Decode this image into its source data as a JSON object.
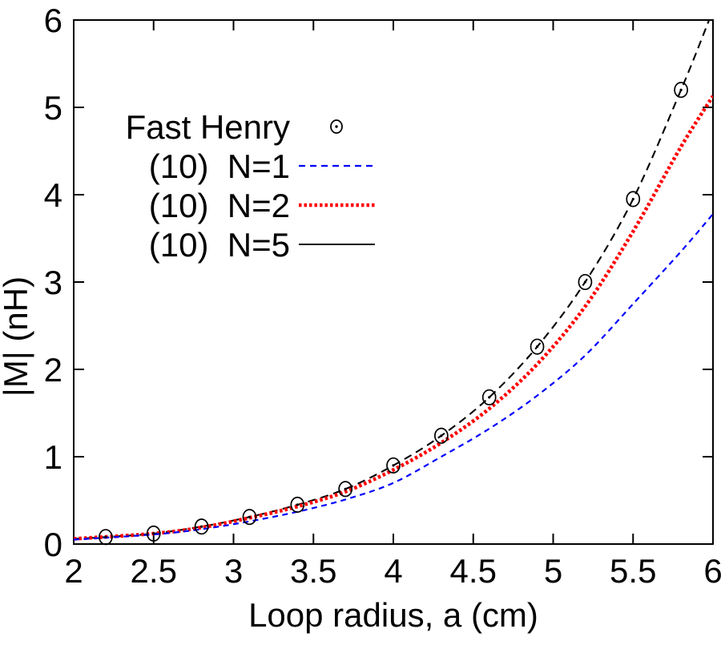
{
  "chart_data": {
    "type": "line",
    "title": "",
    "xlabel": "Loop radius, a (cm)",
    "ylabel": "|M| (nH)",
    "xlim": [
      2,
      6
    ],
    "ylim": [
      0,
      6
    ],
    "grid": false,
    "legend_position": "inside-upper-left",
    "xticks": {
      "values": [
        2,
        2.5,
        3,
        3.5,
        4,
        4.5,
        5,
        5.5,
        6
      ],
      "labels": [
        "2",
        "2.5",
        "3",
        "3.5",
        "4",
        "4.5",
        "5",
        "5.5",
        "6"
      ]
    },
    "yticks": {
      "values": [
        0,
        1,
        2,
        3,
        4,
        5,
        6
      ],
      "labels": [
        "0",
        "1",
        "2",
        "3",
        "4",
        "5",
        "6"
      ]
    },
    "series": [
      {
        "name": "Fast Henry",
        "kind": "scatter",
        "marker": "open-circle-with-center-dot",
        "color": "#000000",
        "x": [
          2.2,
          2.5,
          2.8,
          3.1,
          3.4,
          3.7,
          4.0,
          4.3,
          4.6,
          4.9,
          5.2,
          5.5,
          5.8
        ],
        "y": [
          0.08,
          0.12,
          0.2,
          0.31,
          0.45,
          0.63,
          0.9,
          1.24,
          1.68,
          2.26,
          3.0,
          3.95,
          5.2
        ]
      },
      {
        "name": "(10)  N=1",
        "kind": "line",
        "line_style": "dashed",
        "color": "#0000ff",
        "points": [
          [
            2.0,
            0.05
          ],
          [
            2.5,
            0.11
          ],
          [
            2.8,
            0.17
          ],
          [
            3.1,
            0.26
          ],
          [
            3.4,
            0.37
          ],
          [
            3.7,
            0.51
          ],
          [
            4.0,
            0.7
          ],
          [
            4.3,
            1.0
          ],
          [
            4.6,
            1.32
          ],
          [
            4.9,
            1.7
          ],
          [
            5.2,
            2.16
          ],
          [
            5.5,
            2.75
          ],
          [
            5.8,
            3.35
          ],
          [
            6.0,
            3.78
          ]
        ]
      },
      {
        "name": "(10)  N=2",
        "kind": "line",
        "line_style": "thick-dotted",
        "color": "#ff0000",
        "points": [
          [
            2.0,
            0.06
          ],
          [
            2.5,
            0.12
          ],
          [
            2.8,
            0.19
          ],
          [
            3.1,
            0.3
          ],
          [
            3.4,
            0.43
          ],
          [
            3.7,
            0.6
          ],
          [
            4.0,
            0.85
          ],
          [
            4.3,
            1.16
          ],
          [
            4.6,
            1.55
          ],
          [
            4.9,
            2.06
          ],
          [
            5.2,
            2.72
          ],
          [
            5.5,
            3.58
          ],
          [
            5.8,
            4.55
          ],
          [
            6.0,
            5.13
          ]
        ]
      },
      {
        "name": "(10)  N=5",
        "kind": "line",
        "line_style": "long-dash (legend sample solid)",
        "color": "#000000",
        "points": [
          [
            2.0,
            0.06
          ],
          [
            2.2,
            0.08
          ],
          [
            2.5,
            0.12
          ],
          [
            2.8,
            0.2
          ],
          [
            3.1,
            0.31
          ],
          [
            3.4,
            0.45
          ],
          [
            3.7,
            0.63
          ],
          [
            4.0,
            0.9
          ],
          [
            4.3,
            1.24
          ],
          [
            4.6,
            1.68
          ],
          [
            4.9,
            2.26
          ],
          [
            5.2,
            3.0
          ],
          [
            5.5,
            3.95
          ],
          [
            5.8,
            5.2
          ],
          [
            5.98,
            6.02
          ]
        ]
      }
    ]
  },
  "colors": {
    "background": "#ffffff",
    "axis": "#000000",
    "n1_blue": "#0000ff",
    "n2_red": "#ff0000",
    "n5_black": "#000000",
    "marker_black": "#000000"
  }
}
